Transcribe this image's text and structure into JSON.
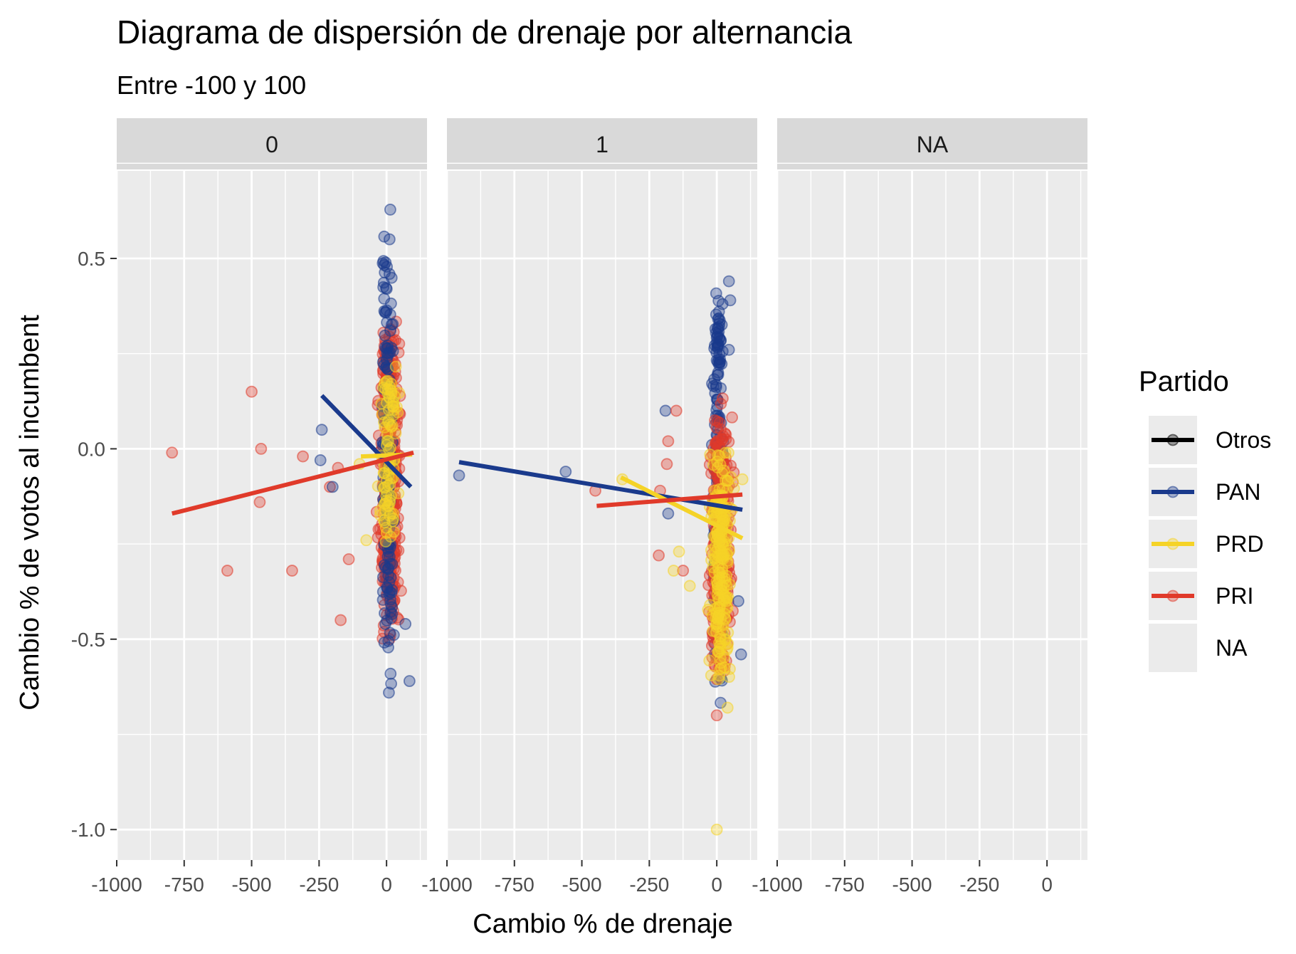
{
  "chart_data": {
    "type": "scatter",
    "title": "Diagrama de dispersión de drenaje por alternancia",
    "subtitle": "Entre -100 y 100",
    "xlabel": "Cambio % de drenaje",
    "ylabel": "Cambio % de votos al incumbent",
    "xlim": [
      -1000,
      150
    ],
    "ylim": [
      -1.08,
      0.73
    ],
    "x_ticks": [
      -1000,
      -750,
      -500,
      -250,
      0
    ],
    "x_tick_labels": [
      "-1000",
      "-750",
      "-500",
      "-250",
      "0"
    ],
    "y_ticks": [
      0.5,
      0.0,
      -0.5,
      -1.0
    ],
    "y_tick_labels": [
      "0.5",
      "0.0",
      "-0.5",
      "-1.0"
    ],
    "grid": true,
    "legend": {
      "title": "Partido",
      "placement": "right",
      "entries": [
        "Otros",
        "PAN",
        "PRD",
        "PRI",
        "NA"
      ]
    },
    "colors": {
      "Otros": "#000000",
      "PAN": "#1a3a8c",
      "PRD": "#f5d327",
      "PRI": "#e03a2a",
      "NA": "#ebebeb",
      "panel_bg": "#ebebeb",
      "strip_bg": "#d9d9d9"
    },
    "panels": [
      {
        "label": "0",
        "outliers": [
          {
            "series": "PRI",
            "x": -795,
            "y": -0.01
          },
          {
            "series": "PRI",
            "x": -500,
            "y": 0.15
          },
          {
            "series": "PRI",
            "x": -465,
            "y": 0.0
          },
          {
            "series": "PRI",
            "x": -470,
            "y": -0.14
          },
          {
            "series": "PRI",
            "x": -590,
            "y": -0.32
          },
          {
            "series": "PRI",
            "x": -350,
            "y": -0.32
          },
          {
            "series": "PRI",
            "x": -310,
            "y": -0.02
          },
          {
            "series": "PRI",
            "x": -170,
            "y": -0.45
          },
          {
            "series": "PRI",
            "x": -140,
            "y": -0.29
          },
          {
            "series": "PRI",
            "x": -210,
            "y": -0.1
          },
          {
            "series": "PRI",
            "x": -180,
            "y": -0.05
          },
          {
            "series": "PAN",
            "x": -245,
            "y": -0.03
          },
          {
            "series": "PAN",
            "x": -240,
            "y": 0.05
          },
          {
            "series": "PAN",
            "x": -200,
            "y": -0.1
          },
          {
            "series": "PAN",
            "x": 85,
            "y": -0.61
          },
          {
            "series": "PAN",
            "x": 70,
            "y": -0.46
          },
          {
            "series": "PRD",
            "x": -75,
            "y": -0.24
          },
          {
            "series": "PRD",
            "x": -100,
            "y": -0.04
          }
        ],
        "fits": [
          {
            "series": "PAN",
            "x": [
              -240,
              90
            ],
            "y": [
              0.14,
              -0.1
            ]
          },
          {
            "series": "PRD",
            "x": [
              -95,
              95
            ],
            "y": [
              -0.02,
              -0.015
            ]
          },
          {
            "series": "PRI",
            "x": [
              -795,
              100
            ],
            "y": [
              -0.17,
              -0.01
            ]
          }
        ]
      },
      {
        "label": "1",
        "outliers": [
          {
            "series": "PAN",
            "x": -955,
            "y": -0.07
          },
          {
            "series": "PAN",
            "x": -560,
            "y": -0.06
          },
          {
            "series": "PAN",
            "x": -190,
            "y": 0.1
          },
          {
            "series": "PAN",
            "x": -180,
            "y": -0.17
          },
          {
            "series": "PAN",
            "x": 45,
            "y": 0.44
          },
          {
            "series": "PAN",
            "x": 50,
            "y": 0.39
          },
          {
            "series": "PAN",
            "x": 45,
            "y": 0.26
          },
          {
            "series": "PAN",
            "x": 90,
            "y": -0.54
          },
          {
            "series": "PAN",
            "x": 80,
            "y": -0.4
          },
          {
            "series": "PRI",
            "x": -450,
            "y": -0.11
          },
          {
            "series": "PRI",
            "x": -150,
            "y": 0.1
          },
          {
            "series": "PRI",
            "x": -180,
            "y": 0.02
          },
          {
            "series": "PRI",
            "x": -185,
            "y": -0.04
          },
          {
            "series": "PRI",
            "x": -210,
            "y": -0.11
          },
          {
            "series": "PRI",
            "x": -215,
            "y": -0.28
          },
          {
            "series": "PRI",
            "x": -125,
            "y": -0.32
          },
          {
            "series": "PRI",
            "x": 0,
            "y": -0.7
          },
          {
            "series": "PRD",
            "x": -160,
            "y": -0.32
          },
          {
            "series": "PRD",
            "x": -140,
            "y": -0.27
          },
          {
            "series": "PRD",
            "x": -100,
            "y": -0.36
          },
          {
            "series": "PRD",
            "x": 40,
            "y": -0.68
          },
          {
            "series": "PRD",
            "x": 0,
            "y": -1.0
          },
          {
            "series": "PRD",
            "x": -350,
            "y": -0.08
          },
          {
            "series": "PRD",
            "x": 95,
            "y": -0.08
          }
        ],
        "fits": [
          {
            "series": "PAN",
            "x": [
              -955,
              95
            ],
            "y": [
              -0.035,
              -0.16
            ]
          },
          {
            "series": "PRD",
            "x": [
              -355,
              95
            ],
            "y": [
              -0.075,
              -0.235
            ]
          },
          {
            "series": "PRI",
            "x": [
              -445,
              95
            ],
            "y": [
              -0.15,
              -0.12
            ]
          }
        ]
      },
      {
        "label": "NA",
        "outliers": [],
        "fits": []
      }
    ]
  }
}
